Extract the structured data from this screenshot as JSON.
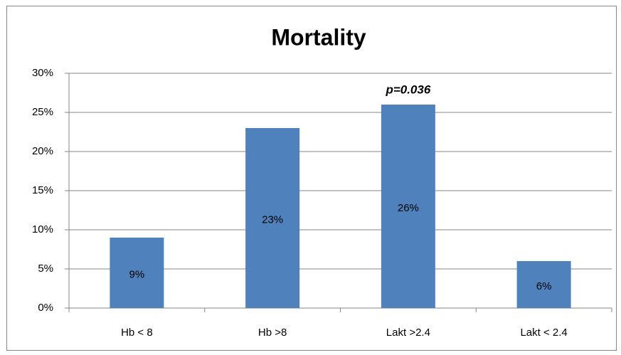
{
  "chart_data": {
    "type": "bar",
    "title": "Mortality",
    "categories": [
      "Hb < 8",
      "Hb >8",
      "Lakt >2.4",
      "Lakt < 2.4"
    ],
    "values": [
      9,
      23,
      26,
      6
    ],
    "value_labels": [
      "9%",
      "23%",
      "26%",
      "6%"
    ],
    "color": "#4f81bd",
    "annotation": "p=0.036",
    "ylim": [
      0,
      30
    ],
    "yticks": [
      {
        "value": 0,
        "label": "0%"
      },
      {
        "value": 5,
        "label": "5%"
      },
      {
        "value": 10,
        "label": "10%"
      },
      {
        "value": 15,
        "label": "15%"
      },
      {
        "value": 20,
        "label": "20%"
      },
      {
        "value": 25,
        "label": "25%"
      },
      {
        "value": 30,
        "label": "30%"
      }
    ],
    "grid": true
  }
}
